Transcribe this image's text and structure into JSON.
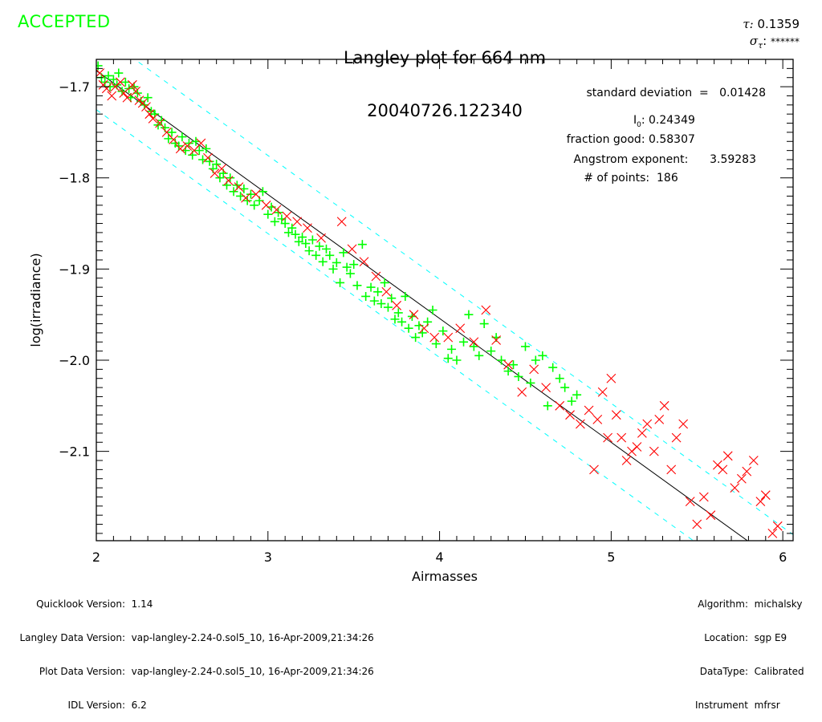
{
  "header": {
    "status": "ACCEPTED",
    "title_line1": "Langley plot for 664 nm",
    "title_line2": "20040726.122340",
    "tau_label": "τ:",
    "tau_value": "0.1359",
    "sigma_label": "σ",
    "sigma_sub": "τ",
    "sigma_colon": ":",
    "sigma_value": "******"
  },
  "stats": {
    "std_dev_label": "standard deviation  =",
    "std_dev_value": "0.01428",
    "i0_label": "I",
    "i0_sub": "0",
    "i0_colon": ":",
    "i0_value": "0.24349",
    "fraction_good_label": "fraction good:",
    "fraction_good_value": "0.58307",
    "angstrom_label": "Angstrom exponent:",
    "angstrom_value": "3.59283",
    "points_label": "# of points:",
    "points_value": "186"
  },
  "footer_left": [
    {
      "key": "Quicklook Version:",
      "value": "1.14"
    },
    {
      "key": "Langley Data Version:",
      "value": "vap-langley-2.24-0.sol5_10, 16-Apr-2009,21:34:26"
    },
    {
      "key": "Plot Data Version:",
      "value": "vap-langley-2.24-0.sol5_10, 16-Apr-2009,21:34:26"
    },
    {
      "key": "IDL Version:",
      "value": "6.2"
    }
  ],
  "footer_right": [
    {
      "key": "Algorithm:",
      "value": "michalsky"
    },
    {
      "key": "Location:",
      "value": "sgp E9"
    },
    {
      "key": "DataType:",
      "value": "Calibrated"
    },
    {
      "key": "Instrument",
      "value": "mfrsr"
    }
  ],
  "colors": {
    "accepted": "#00ff00",
    "good_points": "#00ff00",
    "rejected_points": "#ff0000",
    "fit_line": "#000000",
    "bounds": "#00ffff"
  },
  "chart_data": {
    "type": "scatter",
    "title": "Langley plot for 664 nm",
    "subtitle": "20040726.122340",
    "xlabel": "Airmasses",
    "ylabel": "log(irradiance)",
    "xlim": [
      2.0,
      6.06
    ],
    "ylim": [
      -2.198,
      -1.67
    ],
    "xticks": [
      2,
      3,
      4,
      5,
      6
    ],
    "xtick_labels": [
      "2",
      "3",
      "4",
      "5",
      "6"
    ],
    "x_minor_step": 0.1,
    "yticks": [
      -1.7,
      -1.8,
      -1.9,
      -2.0,
      -2.1
    ],
    "ytick_labels": [
      "-1.7",
      "-1.8",
      "-1.9",
      "-2.0",
      "-2.1"
    ],
    "y_minor_step": 0.01,
    "grid": false,
    "fit": {
      "intercept": -1.4106,
      "slope": -0.1359
    },
    "bounds_offset": 0.0428,
    "series": [
      {
        "name": "good",
        "marker": "plus",
        "x": [
          2.01,
          2.03,
          2.05,
          2.07,
          2.08,
          2.1,
          2.12,
          2.13,
          2.15,
          2.17,
          2.19,
          2.2,
          2.22,
          2.24,
          2.26,
          2.28,
          2.3,
          2.32,
          2.34,
          2.36,
          2.38,
          2.4,
          2.42,
          2.44,
          2.46,
          2.48,
          2.5,
          2.52,
          2.54,
          2.56,
          2.58,
          2.6,
          2.62,
          2.64,
          2.66,
          2.68,
          2.7,
          2.72,
          2.74,
          2.76,
          2.78,
          2.8,
          2.82,
          2.84,
          2.86,
          2.88,
          2.9,
          2.92,
          2.95,
          2.97,
          3.0,
          3.02,
          3.04,
          3.06,
          3.08,
          3.1,
          3.12,
          3.14,
          3.16,
          3.18,
          3.2,
          3.22,
          3.24,
          3.26,
          3.28,
          3.3,
          3.32,
          3.34,
          3.36,
          3.38,
          3.4,
          3.42,
          3.44,
          3.46,
          3.48,
          3.5,
          3.52,
          3.55,
          3.57,
          3.6,
          3.62,
          3.64,
          3.66,
          3.68,
          3.7,
          3.72,
          3.74,
          3.76,
          3.78,
          3.8,
          3.82,
          3.84,
          3.86,
          3.88,
          3.9,
          3.93,
          3.96,
          3.98,
          4.02,
          4.05,
          4.07,
          4.1,
          4.14,
          4.17,
          4.2,
          4.23,
          4.26,
          4.3,
          4.33,
          4.36,
          4.4,
          4.43,
          4.46,
          4.5,
          4.53,
          4.56,
          4.6,
          4.63,
          4.66,
          4.7,
          4.73,
          4.77,
          4.8
        ],
        "y": [
          -1.677,
          -1.69,
          -1.695,
          -1.688,
          -1.7,
          -1.692,
          -1.698,
          -1.685,
          -1.705,
          -1.695,
          -1.702,
          -1.712,
          -1.7,
          -1.707,
          -1.716,
          -1.72,
          -1.712,
          -1.727,
          -1.73,
          -1.742,
          -1.737,
          -1.745,
          -1.757,
          -1.75,
          -1.762,
          -1.765,
          -1.755,
          -1.77,
          -1.762,
          -1.775,
          -1.76,
          -1.77,
          -1.78,
          -1.768,
          -1.782,
          -1.79,
          -1.785,
          -1.8,
          -1.795,
          -1.808,
          -1.8,
          -1.815,
          -1.808,
          -1.82,
          -1.812,
          -1.825,
          -1.818,
          -1.83,
          -1.825,
          -1.815,
          -1.84,
          -1.832,
          -1.848,
          -1.838,
          -1.845,
          -1.85,
          -1.86,
          -1.855,
          -1.862,
          -1.87,
          -1.865,
          -1.872,
          -1.88,
          -1.868,
          -1.885,
          -1.875,
          -1.892,
          -1.878,
          -1.885,
          -1.9,
          -1.893,
          -1.915,
          -1.882,
          -1.898,
          -1.905,
          -1.895,
          -1.918,
          -1.873,
          -1.93,
          -1.92,
          -1.935,
          -1.925,
          -1.938,
          -1.915,
          -1.942,
          -1.932,
          -1.955,
          -1.948,
          -1.958,
          -1.93,
          -1.965,
          -1.952,
          -1.975,
          -1.962,
          -1.97,
          -1.958,
          -1.945,
          -1.982,
          -1.968,
          -1.998,
          -1.988,
          -2.0,
          -1.98,
          -1.95,
          -1.985,
          -1.995,
          -1.96,
          -1.99,
          -1.975,
          -2.0,
          -2.012,
          -2.005,
          -2.018,
          -1.985,
          -2.025,
          -2.0,
          -1.995,
          -2.05,
          -2.008,
          -2.02,
          -2.03,
          -2.045,
          -2.038
        ]
      },
      {
        "name": "rejected",
        "marker": "x",
        "x": [
          2.02,
          2.04,
          2.06,
          2.09,
          2.11,
          2.14,
          2.16,
          2.18,
          2.21,
          2.23,
          2.25,
          2.27,
          2.29,
          2.31,
          2.33,
          2.37,
          2.41,
          2.45,
          2.49,
          2.53,
          2.57,
          2.61,
          2.65,
          2.69,
          2.73,
          2.77,
          2.83,
          2.87,
          2.93,
          2.99,
          3.05,
          3.11,
          3.17,
          3.23,
          3.31,
          3.43,
          3.49,
          3.56,
          3.63,
          3.69,
          3.75,
          3.85,
          3.91,
          3.97,
          4.05,
          4.12,
          4.2,
          4.27,
          4.33,
          4.4,
          4.48,
          4.55,
          4.62,
          4.7,
          4.76,
          4.82,
          4.87,
          4.9,
          4.92,
          4.95,
          4.98,
          5.0,
          5.03,
          5.06,
          5.09,
          5.12,
          5.15,
          5.18,
          5.21,
          5.25,
          5.28,
          5.31,
          5.35,
          5.38,
          5.42,
          5.46,
          5.5,
          5.54,
          5.58,
          5.62,
          5.65,
          5.68,
          5.72,
          5.76,
          5.79,
          5.83,
          5.87,
          5.9,
          5.94,
          5.97
        ],
        "y": [
          -1.685,
          -1.698,
          -1.702,
          -1.71,
          -1.7,
          -1.695,
          -1.707,
          -1.712,
          -1.698,
          -1.705,
          -1.715,
          -1.718,
          -1.722,
          -1.73,
          -1.735,
          -1.74,
          -1.75,
          -1.758,
          -1.768,
          -1.765,
          -1.77,
          -1.762,
          -1.778,
          -1.795,
          -1.79,
          -1.803,
          -1.81,
          -1.822,
          -1.818,
          -1.83,
          -1.835,
          -1.842,
          -1.848,
          -1.855,
          -1.866,
          -1.848,
          -1.878,
          -1.892,
          -1.908,
          -1.925,
          -1.94,
          -1.95,
          -1.965,
          -1.975,
          -1.975,
          -1.965,
          -1.98,
          -1.945,
          -1.978,
          -2.005,
          -2.035,
          -2.01,
          -2.03,
          -2.05,
          -2.06,
          -2.07,
          -2.055,
          -2.12,
          -2.065,
          -2.035,
          -2.085,
          -2.02,
          -2.06,
          -2.085,
          -2.11,
          -2.1,
          -2.095,
          -2.08,
          -2.07,
          -2.1,
          -2.065,
          -2.05,
          -2.12,
          -2.085,
          -2.07,
          -2.155,
          -2.18,
          -2.15,
          -2.17,
          -2.115,
          -2.12,
          -2.105,
          -2.14,
          -2.13,
          -2.122,
          -2.11,
          -2.155,
          -2.148,
          -2.19,
          -2.182
        ]
      }
    ]
  }
}
